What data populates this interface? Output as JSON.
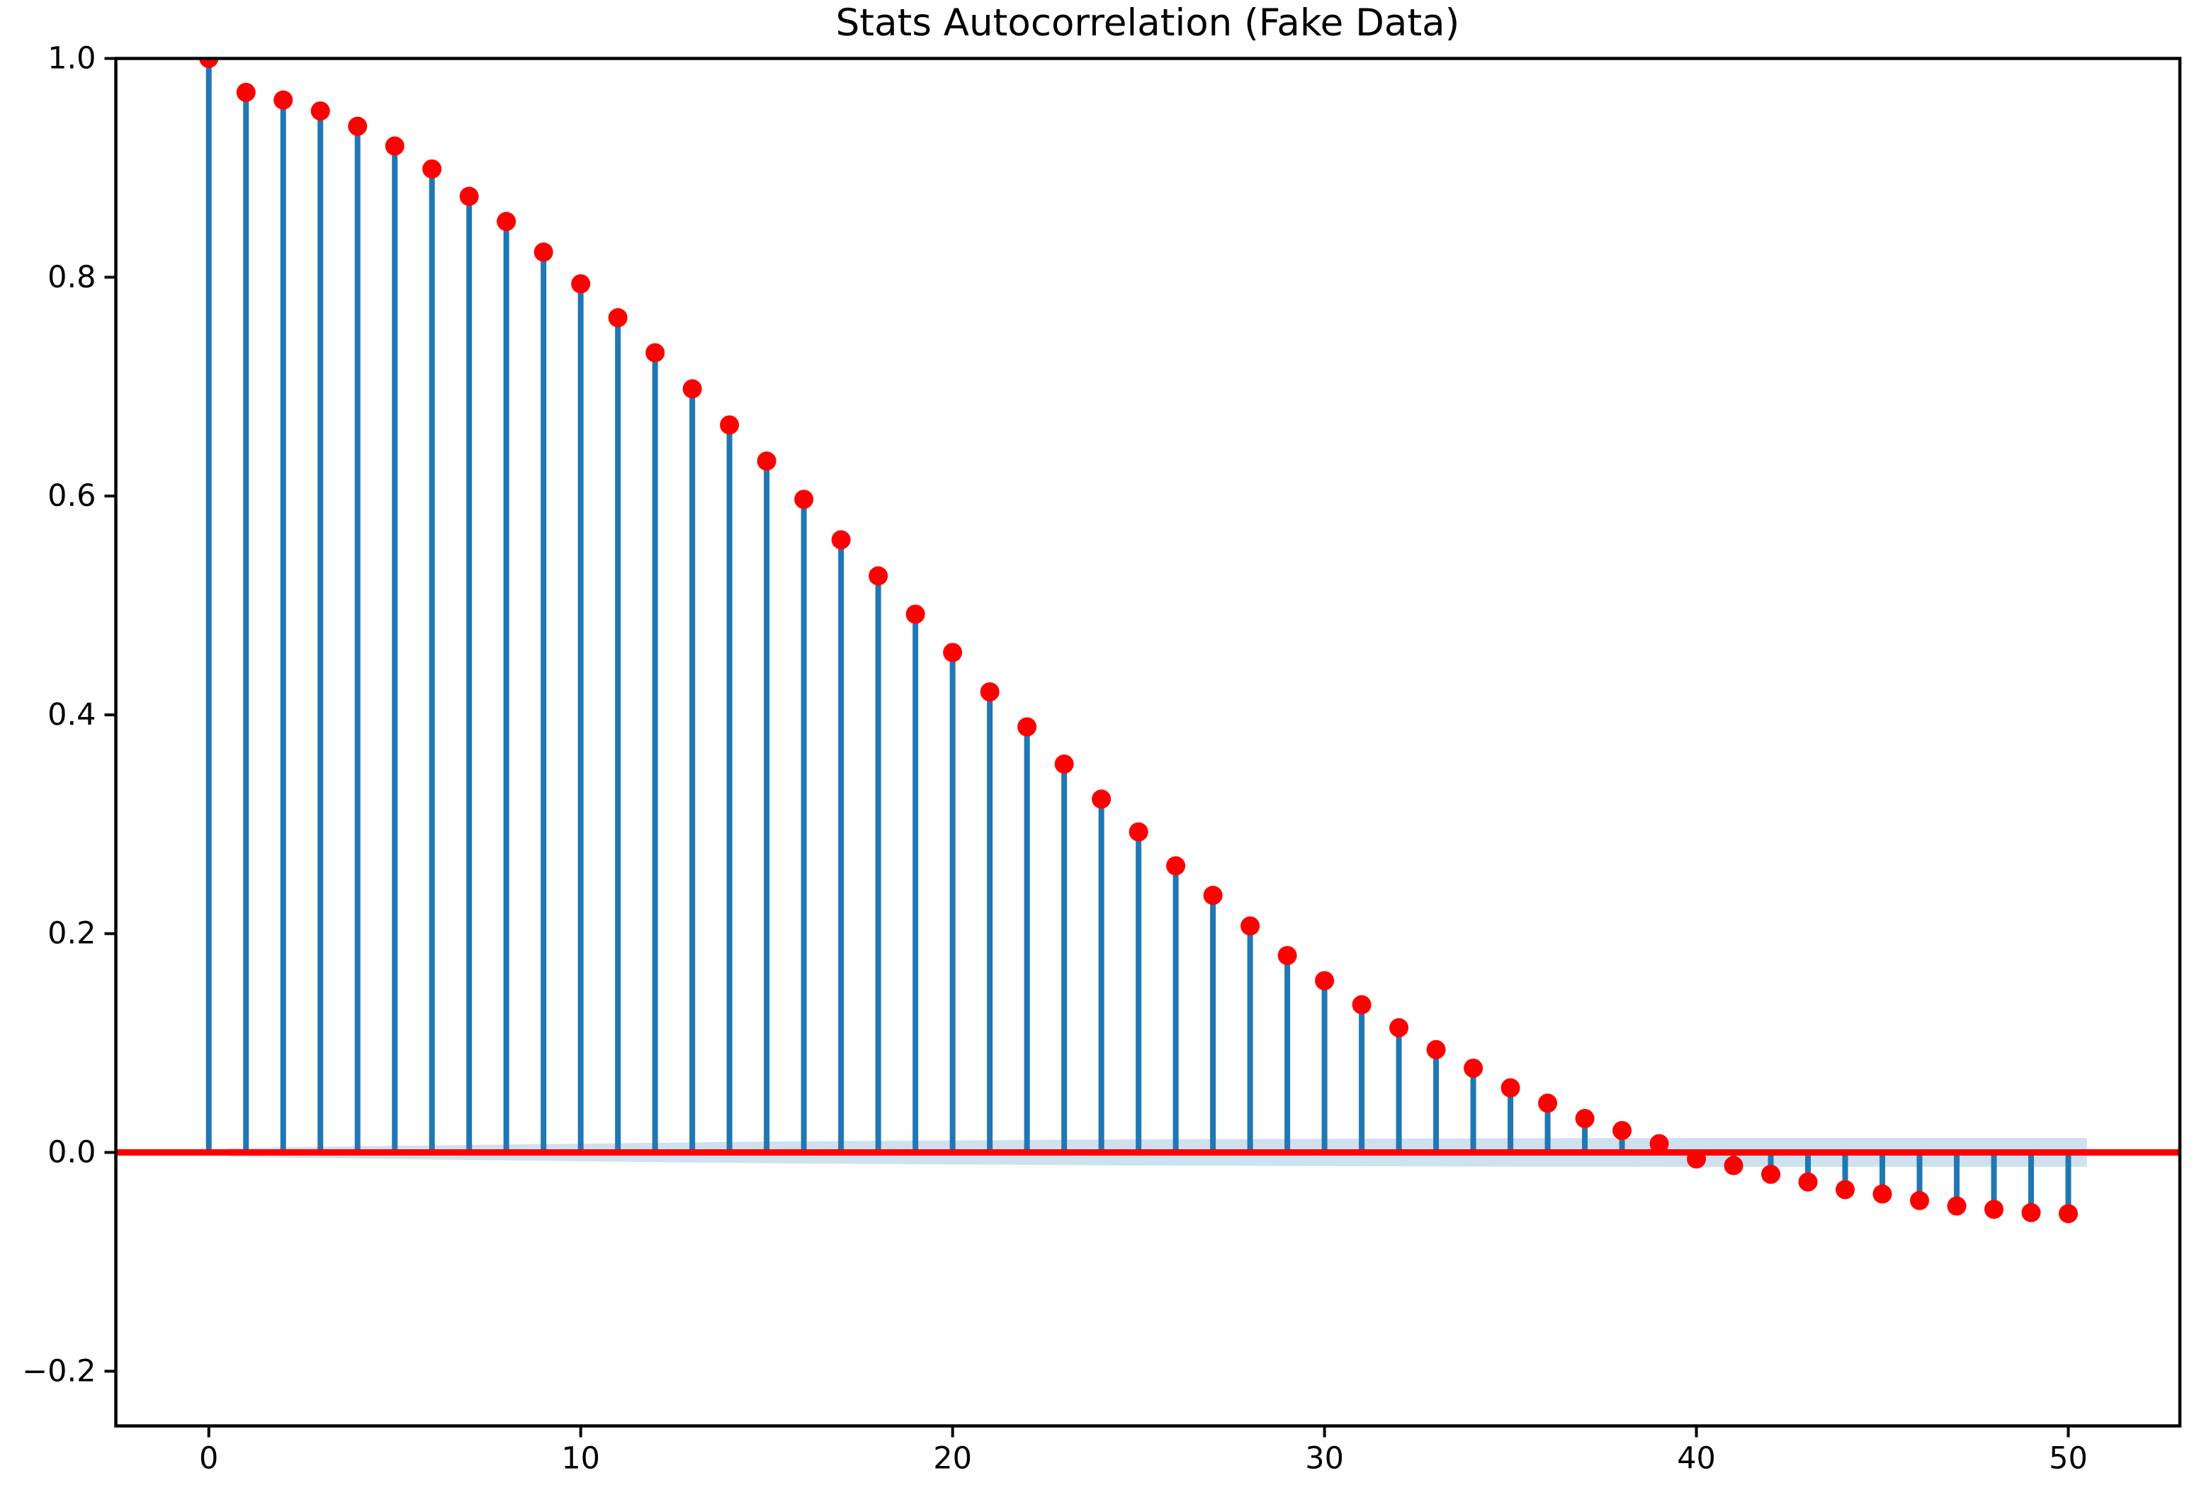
{
  "chart_data": {
    "type": "stem",
    "title": "Stats Autocorrelation (Fake Data)",
    "xlabel": "",
    "ylabel": "",
    "x": [
      0,
      1,
      2,
      3,
      4,
      5,
      6,
      7,
      8,
      9,
      10,
      11,
      12,
      13,
      14,
      15,
      16,
      17,
      18,
      19,
      20,
      21,
      22,
      23,
      24,
      25,
      26,
      27,
      28,
      29,
      30,
      31,
      32,
      33,
      34,
      35,
      36,
      37,
      38,
      39,
      40,
      41,
      42,
      43,
      44,
      45,
      46,
      47,
      48,
      49,
      50
    ],
    "values": [
      1.0,
      0.969,
      0.962,
      0.952,
      0.938,
      0.92,
      0.899,
      0.874,
      0.851,
      0.823,
      0.794,
      0.763,
      0.731,
      0.698,
      0.665,
      0.632,
      0.597,
      0.56,
      0.527,
      0.492,
      0.457,
      0.421,
      0.389,
      0.355,
      0.323,
      0.293,
      0.262,
      0.235,
      0.207,
      0.18,
      0.157,
      0.135,
      0.114,
      0.094,
      0.077,
      0.059,
      0.045,
      0.031,
      0.02,
      0.008,
      -0.006,
      -0.012,
      -0.02,
      -0.027,
      -0.034,
      -0.038,
      -0.044,
      -0.049,
      -0.052,
      -0.055,
      -0.056
    ],
    "xlim": [
      -2.5,
      53.0
    ],
    "ylim": [
      -0.25,
      1.0
    ],
    "x_ticks": [
      0,
      10,
      20,
      30,
      40,
      50
    ],
    "x_tick_labels": [
      "0",
      "10",
      "20",
      "30",
      "40",
      "50"
    ],
    "y_ticks": [
      1.0,
      0.8,
      0.6,
      0.4,
      0.2,
      0.0,
      -0.2
    ],
    "y_tick_labels": [
      "1.0",
      "0.8",
      "0.6",
      "0.4",
      "0.2",
      "0.0",
      "−0.2"
    ],
    "grid": false,
    "legend": "none",
    "zero_line": {
      "y": 0.0,
      "color": "#ff0000"
    },
    "confidence_band": {
      "color": "#1f77b4",
      "opacity": 0.22,
      "points": [
        {
          "x": 0.5,
          "hw": 0.004
        },
        {
          "x": 5,
          "hw": 0.006
        },
        {
          "x": 10,
          "hw": 0.008
        },
        {
          "x": 15,
          "hw": 0.01
        },
        {
          "x": 20,
          "hw": 0.011
        },
        {
          "x": 25,
          "hw": 0.012
        },
        {
          "x": 30,
          "hw": 0.0125
        },
        {
          "x": 35,
          "hw": 0.013
        },
        {
          "x": 40,
          "hw": 0.0132
        },
        {
          "x": 45,
          "hw": 0.0132
        },
        {
          "x": 50.5,
          "hw": 0.0132
        }
      ]
    },
    "stem_color": "#1f77b4",
    "marker_color": "#ff0000",
    "axis_color": "#000000"
  }
}
